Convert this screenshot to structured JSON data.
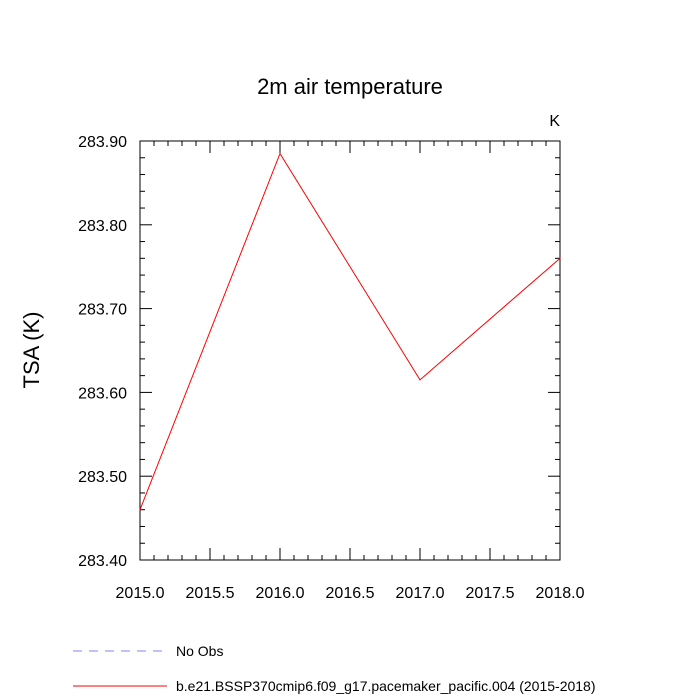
{
  "chart_data": {
    "type": "line",
    "title": "2m air temperature",
    "units_label": "K",
    "ylabel": "TSA  (K)",
    "xlabel": "",
    "xlim": [
      2015.0,
      2018.0
    ],
    "ylim": [
      283.4,
      283.9
    ],
    "x_ticks": [
      2015.0,
      2015.5,
      2016.0,
      2016.5,
      2017.0,
      2017.5,
      2018.0
    ],
    "x_tick_labels": [
      "2015.0",
      "2015.5",
      "2016.0",
      "2016.5",
      "2017.0",
      "2017.5",
      "2018.0"
    ],
    "y_ticks": [
      283.4,
      283.5,
      283.6,
      283.7,
      283.8,
      283.9
    ],
    "y_tick_labels": [
      "283.40",
      "283.50",
      "283.60",
      "283.70",
      "283.80",
      "283.90"
    ],
    "x_minor_step": 0.1,
    "y_minor_step": 0.02,
    "grid": false,
    "legend_position": "bottom-left, below plot",
    "series": [
      {
        "name": "b.e21.BSSP370cmip6.f09_g17.pacemaker_pacific.004 (2015-2018)",
        "color": "#ff0000",
        "dash": "solid",
        "x": [
          2015.0,
          2016.0,
          2017.0,
          2018.0
        ],
        "y": [
          283.46,
          283.885,
          283.615,
          283.76
        ]
      }
    ],
    "legend": [
      {
        "label": "No Obs",
        "color": "#8080ff",
        "dash": "dashed"
      },
      {
        "label": "b.e21.BSSP370cmip6.f09_g17.pacemaker_pacific.004 (2015-2018)",
        "color": "#ff0000",
        "dash": "solid"
      }
    ]
  }
}
